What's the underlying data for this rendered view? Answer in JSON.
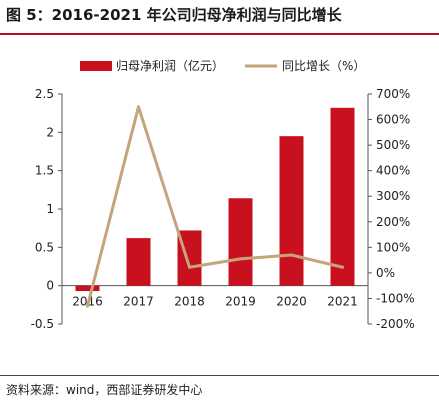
{
  "figure_title": "图 5：2016-2021 年公司归母净利润与同比增长",
  "source": "资料来源：wind，西部证券研发中心",
  "colors": {
    "bar": "#c8101f",
    "line": "#c4a57b",
    "accent": "#b3101e"
  },
  "chart_data": {
    "type": "bar",
    "categories": [
      "2016",
      "2017",
      "2018",
      "2019",
      "2020",
      "2021"
    ],
    "series": [
      {
        "name": "归母净利润（亿元）",
        "type": "bar",
        "axis": "left",
        "values": [
          -0.07,
          0.62,
          0.72,
          1.14,
          1.95,
          2.32
        ]
      },
      {
        "name": "同比增长（%）",
        "type": "line",
        "axis": "right",
        "values": [
          -130,
          650,
          22,
          55,
          70,
          22
        ]
      }
    ],
    "y_left": {
      "ylim": [
        -0.5,
        2.5
      ],
      "ticks": [
        "-0.5",
        "0",
        "0.5",
        "1",
        "1.5",
        "2",
        "2.5"
      ]
    },
    "y_right": {
      "ylim": [
        -200,
        700
      ],
      "ticks": [
        "-200%",
        "-100%",
        "0%",
        "100%",
        "200%",
        "300%",
        "400%",
        "500%",
        "600%",
        "700%"
      ]
    },
    "legend": "top",
    "grid": false
  }
}
